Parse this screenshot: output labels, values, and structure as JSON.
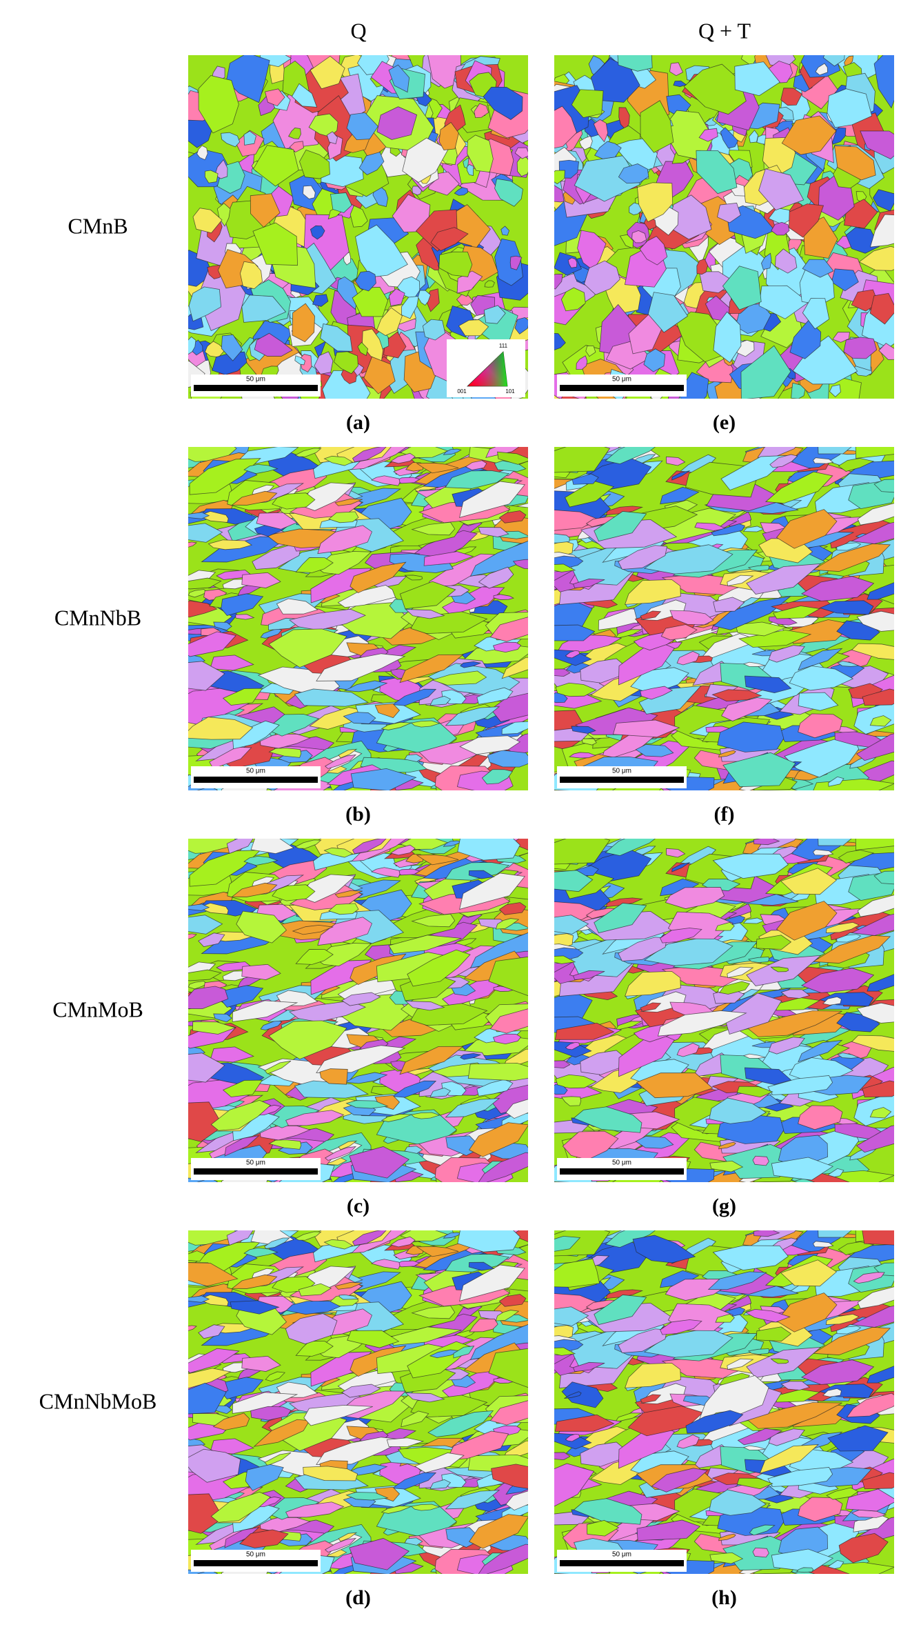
{
  "column_headers": [
    "Q",
    "Q + T"
  ],
  "rows": [
    {
      "label": "CMnB",
      "panels": [
        {
          "caption": "(a)",
          "scale_bar": "50 μm"
        },
        {
          "caption": "(e)",
          "scale_bar": "50 μm"
        }
      ]
    },
    {
      "label": "CMnNbB",
      "panels": [
        {
          "caption": "(b)",
          "scale_bar": "50 μm"
        },
        {
          "caption": "(f)",
          "scale_bar": "50 μm"
        }
      ]
    },
    {
      "label": "CMnMoB",
      "panels": [
        {
          "caption": "(c)",
          "scale_bar": "50 μm"
        },
        {
          "caption": "(g)",
          "scale_bar": "50 μm"
        }
      ]
    },
    {
      "label": "CMnNbMoB",
      "panels": [
        {
          "caption": "(d)",
          "scale_bar": "50 μm"
        },
        {
          "caption": "(h)",
          "scale_bar": "50 μm"
        }
      ]
    }
  ],
  "legend": {
    "labels": [
      "111",
      "001",
      "101"
    ]
  }
}
